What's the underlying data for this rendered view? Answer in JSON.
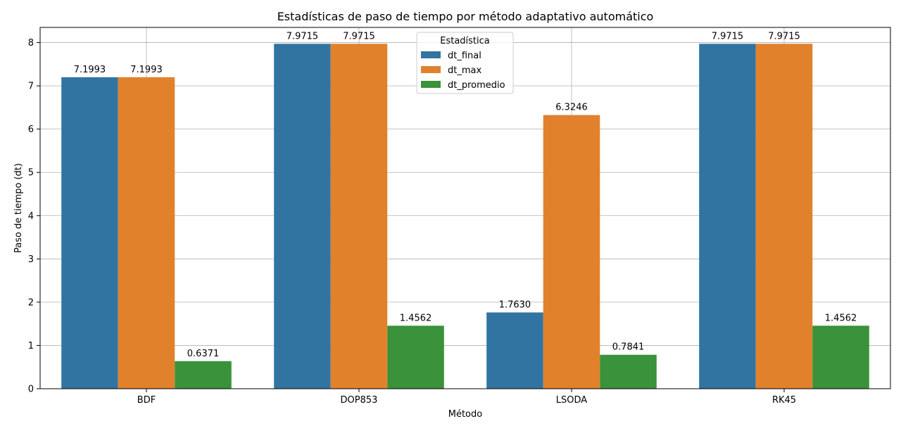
{
  "chart_data": {
    "type": "bar",
    "title": "Estadísticas de paso de tiempo por método adaptativo automático",
    "xlabel": "Método",
    "ylabel": "Paso de tiempo (dt)",
    "categories": [
      "BDF",
      "DOP853",
      "LSODA",
      "RK45"
    ],
    "ylim": [
      0,
      8.35
    ],
    "yticks": [
      0,
      1,
      2,
      3,
      4,
      5,
      6,
      7,
      8
    ],
    "grid": true,
    "legend": {
      "title": "Estadística",
      "placement": "top-center"
    },
    "series": [
      {
        "name": "dt_final",
        "color": "#3274a1",
        "values": [
          7.1993,
          7.9715,
          1.763,
          7.9715
        ],
        "labels": [
          "7.1993",
          "7.9715",
          "1.7630",
          "7.9715"
        ]
      },
      {
        "name": "dt_max",
        "color": "#e1812c",
        "values": [
          7.1993,
          7.9715,
          6.3246,
          7.9715
        ],
        "labels": [
          "7.1993",
          "7.9715",
          "6.3246",
          "7.9715"
        ]
      },
      {
        "name": "dt_promedio",
        "color": "#3a923a",
        "values": [
          0.6371,
          1.4562,
          0.7841,
          1.4562
        ],
        "labels": [
          "0.6371",
          "1.4562",
          "0.7841",
          "1.4562"
        ]
      }
    ]
  }
}
